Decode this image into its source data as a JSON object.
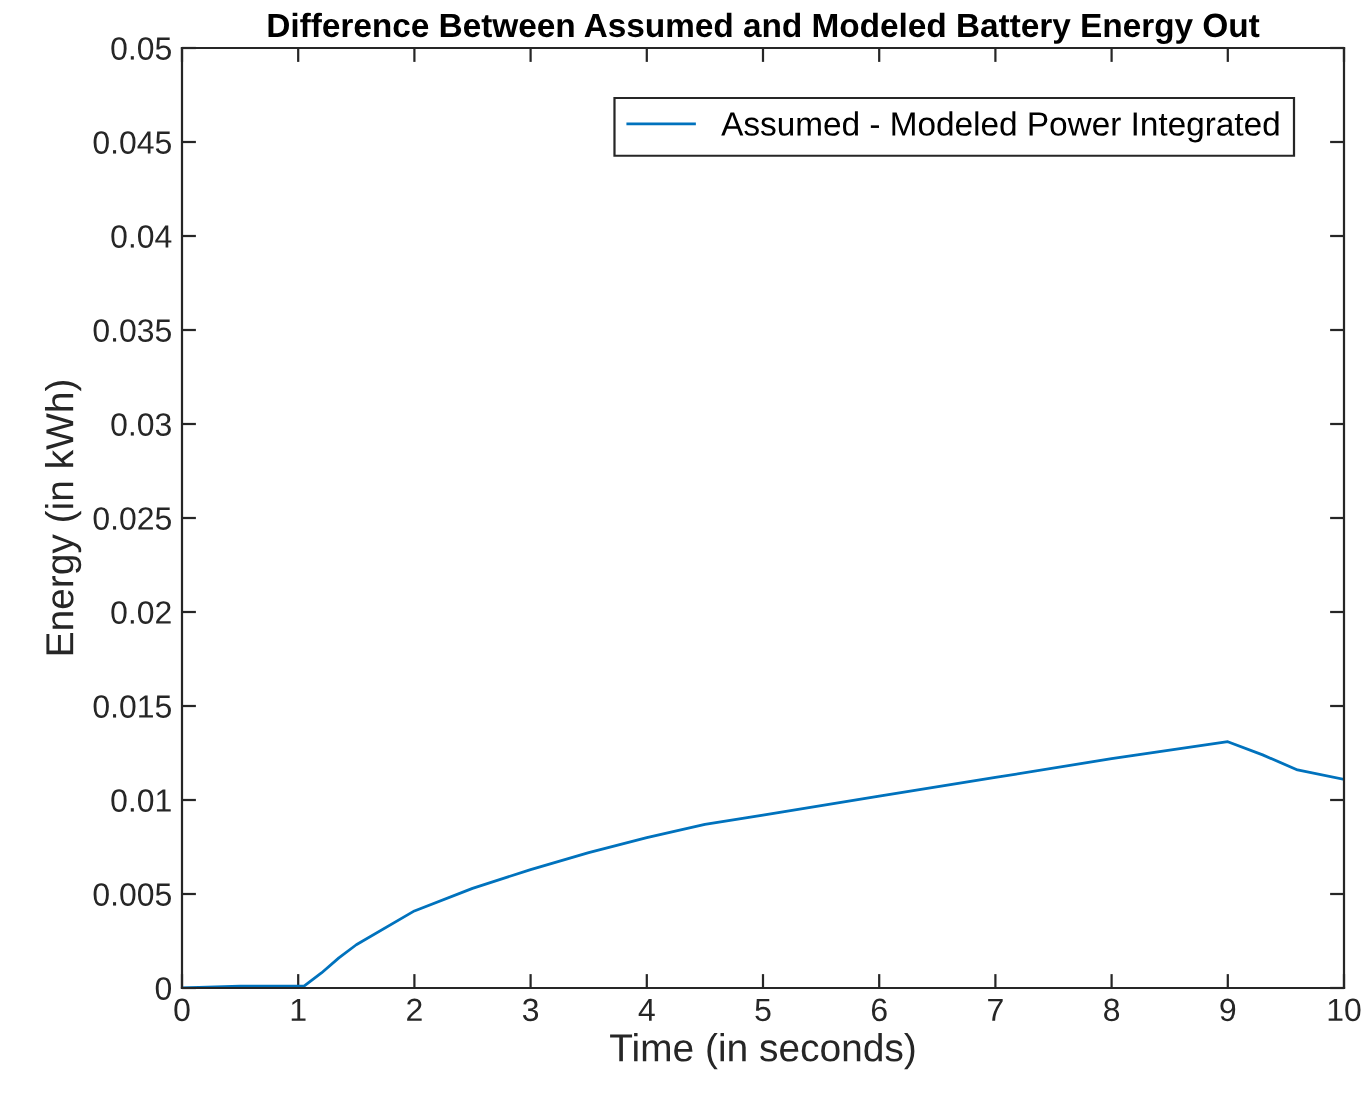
{
  "chart_data": {
    "type": "line",
    "title": "Difference Between Assumed and Modeled Battery Energy Out",
    "xlabel": "Time (in seconds)",
    "ylabel": "Energy (in kWh)",
    "xlim": [
      0,
      10
    ],
    "xticks": [
      0,
      1,
      2,
      3,
      4,
      5,
      6,
      7,
      8,
      9,
      10
    ],
    "ylim": [
      0,
      0.05
    ],
    "yticks": [
      0,
      0.005,
      0.01,
      0.015,
      0.02,
      0.025,
      0.03,
      0.035,
      0.04,
      0.045,
      0.05
    ],
    "grid": false,
    "legend": "top right",
    "marker": "none",
    "line_style": "solid",
    "series": [
      {
        "name": "Assumed - Modeled Power Integrated",
        "color": "#0072bd",
        "x": [
          0,
          0.5,
          1.0,
          1.05,
          1.2,
          1.35,
          1.5,
          2,
          2.5,
          3,
          3.5,
          4,
          4.5,
          5,
          6,
          7,
          8,
          9,
          9.3,
          9.6,
          10
        ],
        "values": [
          0,
          0.0001,
          0.0001,
          0.0001,
          0.0008,
          0.0016,
          0.0023,
          0.0041,
          0.0053,
          0.0063,
          0.0072,
          0.008,
          0.0087,
          0.0092,
          0.0102,
          0.0112,
          0.0122,
          0.0131,
          0.0124,
          0.0116,
          0.0111
        ]
      }
    ]
  }
}
